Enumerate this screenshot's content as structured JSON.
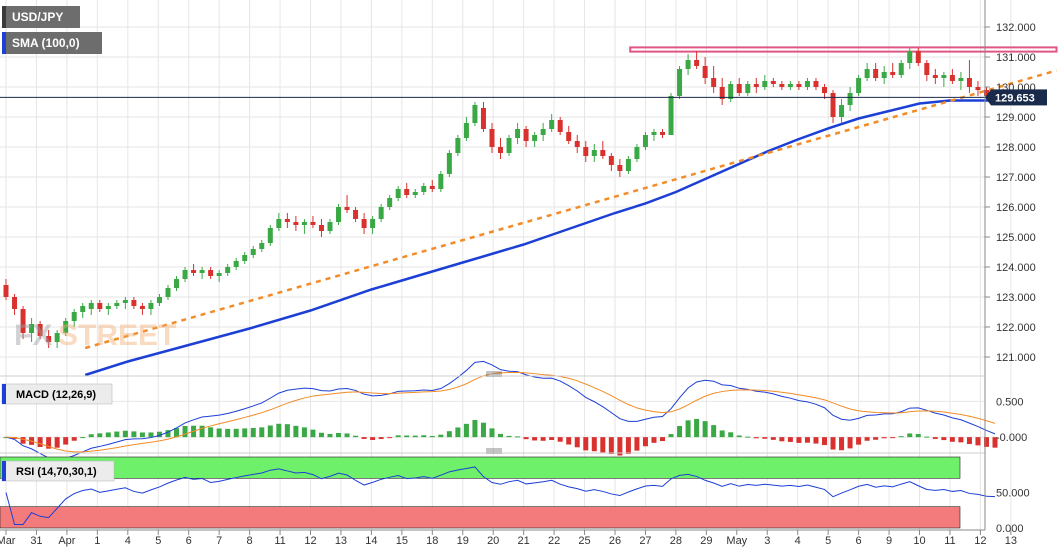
{
  "chart_data": {
    "type": "candlestick",
    "symbol": "USD/JPY",
    "legend": [
      {
        "name": "USD/JPY",
        "color": "#6d6d6d"
      },
      {
        "name": "SMA (100,0)",
        "color": "#1c3fd6"
      }
    ],
    "last_price": "129.653",
    "price_axis": {
      "range": [
        120.4,
        132.3
      ],
      "ticks": [
        "121.000",
        "122.000",
        "123.000",
        "124.000",
        "125.000",
        "126.000",
        "127.000",
        "128.000",
        "129.000",
        "130.000",
        "131.000",
        "132.000"
      ]
    },
    "x_axis": {
      "labels": [
        "Mar",
        "31",
        "Apr",
        "1",
        "4",
        "5",
        "6",
        "7",
        "8",
        "11",
        "12",
        "13",
        "14",
        "15",
        "18",
        "19",
        "20",
        "21",
        "22",
        "25",
        "26",
        "27",
        "28",
        "29",
        "May",
        "3",
        "4",
        "5",
        "6",
        "9",
        "10",
        "11",
        "12",
        "13"
      ]
    },
    "colors": {
      "bullish": "#3aa845",
      "bearish": "#d9312e",
      "sma": "#1c3fd6",
      "trendline": "#f28c28",
      "resistance": "#e05586",
      "macd_line": "#1c3fd6",
      "signal_line": "#f28c28",
      "rsi_line": "#1c3fd6",
      "rsi_overbought": "#6ef06a",
      "rsi_oversold": "#f47b7b"
    },
    "candles": [
      [
        0,
        123.4,
        123.6,
        122.9,
        123.0
      ],
      [
        0.28,
        123.0,
        123.1,
        122.4,
        122.6
      ],
      [
        0.56,
        122.6,
        122.7,
        121.6,
        121.8
      ],
      [
        0.84,
        121.8,
        122.3,
        121.5,
        122.1
      ],
      [
        1.12,
        122.1,
        122.2,
        121.6,
        121.7
      ],
      [
        1.4,
        121.7,
        121.9,
        121.3,
        121.5
      ],
      [
        1.68,
        121.5,
        121.9,
        121.3,
        121.8
      ],
      [
        1.96,
        121.8,
        122.3,
        121.7,
        122.2
      ],
      [
        2.24,
        122.2,
        122.6,
        122.0,
        122.5
      ],
      [
        2.52,
        122.5,
        122.8,
        122.3,
        122.7
      ],
      [
        2.8,
        122.6,
        122.9,
        122.4,
        122.8
      ],
      [
        3.08,
        122.8,
        122.9,
        122.5,
        122.6
      ],
      [
        3.36,
        122.6,
        122.8,
        122.4,
        122.7
      ],
      [
        3.64,
        122.7,
        122.9,
        122.6,
        122.8
      ],
      [
        3.92,
        122.8,
        123.0,
        122.6,
        122.9
      ],
      [
        4.2,
        122.9,
        123.0,
        122.6,
        122.7
      ],
      [
        4.48,
        122.7,
        122.8,
        122.4,
        122.6
      ],
      [
        4.76,
        122.6,
        122.9,
        122.4,
        122.8
      ],
      [
        5.04,
        122.8,
        123.1,
        122.7,
        123.0
      ],
      [
        5.32,
        123.0,
        123.4,
        122.9,
        123.3
      ],
      [
        5.6,
        123.3,
        123.7,
        123.2,
        123.6
      ],
      [
        5.88,
        123.6,
        124.0,
        123.5,
        123.9
      ],
      [
        6.16,
        123.9,
        124.1,
        123.7,
        123.8
      ],
      [
        6.44,
        123.8,
        124.0,
        123.6,
        123.9
      ],
      [
        6.72,
        123.9,
        124.0,
        123.6,
        123.7
      ],
      [
        7,
        123.7,
        123.9,
        123.5,
        123.8
      ],
      [
        7.28,
        123.8,
        124.1,
        123.7,
        124.0
      ],
      [
        7.56,
        124.0,
        124.3,
        123.9,
        124.2
      ],
      [
        7.84,
        124.2,
        124.5,
        124.1,
        124.4
      ],
      [
        8.12,
        124.4,
        124.7,
        124.3,
        124.6
      ],
      [
        8.4,
        124.6,
        124.9,
        124.5,
        124.8
      ],
      [
        8.68,
        124.8,
        125.4,
        124.7,
        125.3
      ],
      [
        8.96,
        125.3,
        125.8,
        125.2,
        125.6
      ],
      [
        9.24,
        125.6,
        125.8,
        125.3,
        125.5
      ],
      [
        9.52,
        125.5,
        125.7,
        125.2,
        125.4
      ],
      [
        9.8,
        125.4,
        125.6,
        125.1,
        125.5
      ],
      [
        10.08,
        125.5,
        125.7,
        125.3,
        125.4
      ],
      [
        10.36,
        125.4,
        125.6,
        125.0,
        125.2
      ],
      [
        10.64,
        125.2,
        125.6,
        125.1,
        125.5
      ],
      [
        10.92,
        125.5,
        126.1,
        125.4,
        126.0
      ],
      [
        11.2,
        126.0,
        126.4,
        125.8,
        125.9
      ],
      [
        11.48,
        125.9,
        126.0,
        125.5,
        125.6
      ],
      [
        11.76,
        125.6,
        125.8,
        125.1,
        125.3
      ],
      [
        12.04,
        125.3,
        125.7,
        125.1,
        125.6
      ],
      [
        12.32,
        125.6,
        126.1,
        125.5,
        126.0
      ],
      [
        12.6,
        126.0,
        126.4,
        125.9,
        126.3
      ],
      [
        12.88,
        126.3,
        126.7,
        126.2,
        126.6
      ],
      [
        13.16,
        126.6,
        126.8,
        126.3,
        126.4
      ],
      [
        13.44,
        126.4,
        126.6,
        126.3,
        126.5
      ],
      [
        13.72,
        126.5,
        126.8,
        126.4,
        126.7
      ],
      [
        14,
        126.7,
        126.9,
        126.5,
        126.6
      ],
      [
        14.28,
        126.6,
        127.2,
        126.5,
        127.1
      ],
      [
        14.56,
        127.1,
        127.9,
        127.0,
        127.8
      ],
      [
        14.84,
        127.8,
        128.4,
        127.7,
        128.3
      ],
      [
        15.12,
        128.3,
        129.0,
        128.2,
        128.8
      ],
      [
        15.4,
        128.8,
        129.5,
        128.7,
        129.4
      ],
      [
        15.68,
        129.3,
        129.5,
        128.5,
        128.6
      ],
      [
        15.96,
        128.6,
        128.8,
        127.8,
        128.0
      ],
      [
        16.24,
        128.0,
        128.3,
        127.6,
        127.8
      ],
      [
        16.52,
        127.8,
        128.4,
        127.7,
        128.3
      ],
      [
        16.8,
        128.3,
        128.8,
        128.1,
        128.6
      ],
      [
        17.08,
        128.6,
        128.7,
        128.0,
        128.2
      ],
      [
        17.36,
        128.2,
        128.5,
        128.0,
        128.4
      ],
      [
        17.64,
        128.4,
        128.8,
        128.2,
        128.6
      ],
      [
        17.92,
        128.6,
        129.1,
        128.5,
        128.9
      ],
      [
        18.2,
        128.9,
        129.0,
        128.4,
        128.5
      ],
      [
        18.48,
        128.5,
        128.7,
        128.1,
        128.2
      ],
      [
        18.76,
        128.2,
        128.4,
        127.8,
        128.0
      ],
      [
        19.04,
        128.0,
        128.2,
        127.5,
        127.7
      ],
      [
        19.32,
        127.7,
        128.1,
        127.5,
        127.9
      ],
      [
        19.6,
        127.9,
        128.2,
        127.6,
        127.7
      ],
      [
        19.88,
        127.7,
        127.8,
        127.2,
        127.4
      ],
      [
        20.16,
        127.4,
        127.6,
        127.0,
        127.2
      ],
      [
        20.44,
        127.2,
        127.7,
        127.1,
        127.6
      ],
      [
        20.72,
        127.6,
        128.1,
        127.5,
        128.0
      ],
      [
        21,
        128.0,
        128.5,
        127.9,
        128.4
      ],
      [
        21.28,
        128.4,
        128.6,
        128.2,
        128.5
      ],
      [
        21.56,
        128.5,
        128.6,
        128.3,
        128.4
      ],
      [
        21.84,
        128.4,
        129.8,
        128.4,
        129.7
      ],
      [
        22.12,
        129.7,
        130.7,
        129.6,
        130.6
      ],
      [
        22.4,
        130.6,
        131.1,
        130.4,
        130.9
      ],
      [
        22.68,
        130.9,
        131.2,
        130.6,
        130.7
      ],
      [
        22.96,
        130.7,
        131.0,
        130.1,
        130.3
      ],
      [
        23.24,
        130.3,
        130.7,
        129.8,
        130.0
      ],
      [
        23.52,
        130.0,
        130.3,
        129.4,
        129.6
      ],
      [
        23.8,
        129.6,
        130.2,
        129.5,
        130.1
      ],
      [
        24.08,
        130.1,
        130.3,
        129.7,
        129.8
      ],
      [
        24.36,
        129.8,
        130.2,
        129.7,
        130.1
      ],
      [
        24.64,
        130.1,
        130.3,
        129.8,
        130.0
      ],
      [
        24.92,
        130.0,
        130.4,
        129.9,
        130.2
      ],
      [
        25.2,
        130.2,
        130.3,
        130.0,
        130.1
      ],
      [
        25.48,
        130.1,
        130.2,
        129.9,
        130.0
      ],
      [
        25.76,
        130.0,
        130.2,
        129.9,
        130.1
      ],
      [
        26.04,
        130.1,
        130.2,
        129.9,
        130.0
      ],
      [
        26.32,
        130.0,
        130.3,
        129.9,
        130.2
      ],
      [
        26.6,
        130.2,
        130.3,
        129.9,
        130.0
      ],
      [
        26.88,
        130.0,
        130.1,
        129.6,
        129.8
      ],
      [
        27.16,
        129.8,
        129.9,
        128.8,
        129.0
      ],
      [
        27.44,
        129.0,
        129.6,
        128.8,
        129.4
      ],
      [
        27.72,
        129.4,
        130.0,
        129.2,
        129.8
      ],
      [
        28,
        129.8,
        130.4,
        129.7,
        130.3
      ],
      [
        28.28,
        130.3,
        130.8,
        130.2,
        130.6
      ],
      [
        28.56,
        130.6,
        130.8,
        130.2,
        130.3
      ],
      [
        28.84,
        130.3,
        130.7,
        130.1,
        130.5
      ],
      [
        29.12,
        130.5,
        130.8,
        130.3,
        130.4
      ],
      [
        29.4,
        130.4,
        130.9,
        130.3,
        130.8
      ],
      [
        29.68,
        130.8,
        131.3,
        130.6,
        131.2
      ],
      [
        29.96,
        131.2,
        131.3,
        130.7,
        130.8
      ],
      [
        30.24,
        130.8,
        130.9,
        130.2,
        130.4
      ],
      [
        30.52,
        130.4,
        130.6,
        130.1,
        130.3
      ],
      [
        30.8,
        130.3,
        130.5,
        130.0,
        130.4
      ],
      [
        31.08,
        130.4,
        130.6,
        130.1,
        130.2
      ],
      [
        31.36,
        130.2,
        130.5,
        129.9,
        130.3
      ],
      [
        31.64,
        130.3,
        130.9,
        129.8,
        130.0
      ],
      [
        31.92,
        130.0,
        130.2,
        129.7,
        129.9
      ],
      [
        32.2,
        129.9,
        130.0,
        129.6,
        129.7
      ],
      [
        32.48,
        129.7,
        129.8,
        129.5,
        129.653
      ]
    ],
    "sma_100": [
      [
        2.6,
        120.4
      ],
      [
        4,
        120.85
      ],
      [
        6,
        121.4
      ],
      [
        8,
        121.95
      ],
      [
        10,
        122.55
      ],
      [
        12,
        123.25
      ],
      [
        13,
        123.55
      ],
      [
        14,
        123.85
      ],
      [
        15,
        124.15
      ],
      [
        16,
        124.45
      ],
      [
        17,
        124.75
      ],
      [
        18,
        125.1
      ],
      [
        19,
        125.45
      ],
      [
        20,
        125.8
      ],
      [
        21,
        126.12
      ],
      [
        22,
        126.5
      ],
      [
        23,
        126.95
      ],
      [
        24,
        127.4
      ],
      [
        25,
        127.85
      ],
      [
        26,
        128.25
      ],
      [
        27,
        128.62
      ],
      [
        28,
        128.95
      ],
      [
        29,
        129.2
      ],
      [
        30,
        129.45
      ],
      [
        31,
        129.55
      ],
      [
        32.4,
        129.55
      ]
    ],
    "trendline": [
      [
        2.6,
        121.3
      ],
      [
        34.5,
        130.55
      ]
    ],
    "resistance_zone": {
      "x1": 20.5,
      "x2": 34.5,
      "y1": 131.18,
      "y2": 131.32
    },
    "macd": {
      "label": "MACD (12,26,9)",
      "range": [
        -0.18,
        0.8
      ],
      "ticks": [
        "0.500",
        "-0.000"
      ]
    },
    "rsi": {
      "label": "RSI (14,70,30,1)",
      "range": [
        0,
        100
      ],
      "ticks": [
        "50.000",
        "0.000"
      ],
      "overbought": 70,
      "oversold": 30
    }
  }
}
